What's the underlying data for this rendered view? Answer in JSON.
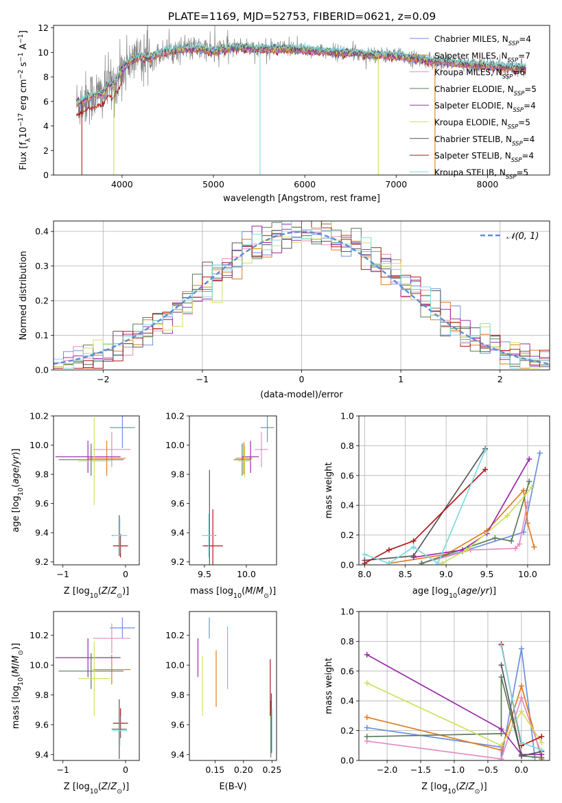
{
  "title": "PLATE=1169, MJD=52753, FIBERID=0621, z=0.09",
  "colors": {
    "chabrier_miles": "#6a8fe0",
    "salpeter_miles": "#e07a1f",
    "kroupa_miles": "#e58bc0",
    "chabrier_elodie": "#5a7a5a",
    "salpeter_elodie": "#9a2aaa",
    "kroupa_elodie": "#cfe05a",
    "chabrier_stelib": "#555555",
    "salpeter_stelib": "#b01818",
    "kroupa_stelib": "#7fd8e0",
    "data": "#808080",
    "normal": "#5b8bd6",
    "grid": "#b0b0b0"
  },
  "chart_data": [
    {
      "id": "spectrum",
      "type": "line",
      "xlabel": "wavelength [Angstrom, rest frame]",
      "ylabel": "Flux [f_λ 10^-17 erg cm^-2 s^-1 A^-1]",
      "xlim": [
        3250,
        8680
      ],
      "ylim": [
        0,
        12.2
      ],
      "xticks": [
        4000,
        5000,
        6000,
        7000,
        8000
      ],
      "yticks": [
        0,
        2,
        4,
        6,
        8,
        10,
        12
      ],
      "grid": false,
      "legend_position": "right",
      "legend": [
        {
          "label": "Chabrier MILES, N_SSP=4",
          "main": "Chabrier MILES, N",
          "sub": "SSP",
          "tail": "=4",
          "color_key": "chabrier_miles"
        },
        {
          "label": "Salpeter MILES, N_SSP=7",
          "main": "Salpeter MILES, N",
          "sub": "SSP",
          "tail": "=7",
          "color_key": "salpeter_miles"
        },
        {
          "label": "Kroupa MILES, N_SSP=6",
          "main": "Kroupa MILES, N",
          "sub": "SSP",
          "tail": "=6",
          "color_key": "kroupa_miles"
        },
        {
          "label": "Chabrier ELODIE, N_SSP=5",
          "main": "Chabrier ELODIE, N",
          "sub": "SSP",
          "tail": "=5",
          "color_key": "chabrier_elodie"
        },
        {
          "label": "Salpeter ELODIE, N_SSP=4",
          "main": "Salpeter ELODIE, N",
          "sub": "SSP",
          "tail": "=4",
          "color_key": "salpeter_elodie"
        },
        {
          "label": "Kroupa ELODIE, N_SSP=5",
          "main": "Kroupa ELODIE, N",
          "sub": "SSP",
          "tail": "=5",
          "color_key": "kroupa_elodie"
        },
        {
          "label": "Chabrier STELIB, N_SSP=4",
          "main": "Chabrier STELIB, N",
          "sub": "SSP",
          "tail": "=4",
          "color_key": "chabrier_stelib"
        },
        {
          "label": "Salpeter STELIB, N_SSP=4",
          "main": "Salpeter STELIB, N",
          "sub": "SSP",
          "tail": "=4",
          "color_key": "salpeter_stelib"
        },
        {
          "label": "Kroupa STELIB, N_SSP=5",
          "main": "Kroupa STELIB, N",
          "sub": "SSP",
          "tail": "=5",
          "color_key": "kroupa_stelib"
        }
      ],
      "model_continuum": [
        [
          3520,
          5.8
        ],
        [
          3600,
          6.2
        ],
        [
          3700,
          6.5
        ],
        [
          3800,
          6.6
        ],
        [
          3850,
          7.4
        ],
        [
          3900,
          7.2
        ],
        [
          3950,
          7.8
        ],
        [
          4000,
          8.6
        ],
        [
          4100,
          9.4
        ],
        [
          4200,
          9.6
        ],
        [
          4300,
          9.5
        ],
        [
          4400,
          9.9
        ],
        [
          4500,
          10.1
        ],
        [
          4700,
          10.3
        ],
        [
          4900,
          10.3
        ],
        [
          5000,
          10.0
        ],
        [
          5100,
          10.3
        ],
        [
          5300,
          10.4
        ],
        [
          5500,
          10.3
        ],
        [
          5800,
          10.3
        ],
        [
          6000,
          10.2
        ],
        [
          6200,
          10.1
        ],
        [
          6400,
          10.0
        ],
        [
          6600,
          9.9
        ],
        [
          6800,
          9.8
        ],
        [
          7000,
          9.7
        ],
        [
          7200,
          9.5
        ],
        [
          7400,
          9.3
        ],
        [
          7600,
          9.2
        ],
        [
          7800,
          9.0
        ],
        [
          8000,
          8.9
        ],
        [
          8200,
          8.8
        ],
        [
          8420,
          8.7
        ]
      ]
    },
    {
      "id": "residuals",
      "type": "line",
      "xlabel": "(data-model)/error",
      "ylabel": "Normed distribution",
      "xlim": [
        -2.5,
        2.5
      ],
      "ylim": [
        0,
        0.43
      ],
      "xticks": [
        -2,
        -1,
        0,
        1,
        2
      ],
      "yticks": [
        0.0,
        0.1,
        0.2,
        0.3,
        0.4
      ],
      "grid": true,
      "legend_position": "top-right",
      "legend": [
        {
          "label": "𝒩(0, 1)",
          "color_key": "normal"
        }
      ],
      "bin_width": 0.1
    },
    {
      "id": "age_vs_Z",
      "type": "scatter",
      "xlabel": "Z [log10(Z/Z⊙)]",
      "ylabel": "age [log10(age/yr)]",
      "xlim": [
        -1.15,
        0.22
      ],
      "ylim": [
        9.18,
        10.2
      ],
      "xticks": [
        -1,
        0
      ],
      "yticks": [
        9.2,
        9.4,
        9.6,
        9.8,
        10.0,
        10.2
      ],
      "points": [
        {
          "color_key": "chabrier_miles",
          "x": -0.05,
          "xerr": 0.2,
          "y": 10.12,
          "yerr": 0.14
        },
        {
          "color_key": "salpeter_miles",
          "x": -0.3,
          "xerr": 0.3,
          "y": 9.91,
          "yerr": 0.12
        },
        {
          "color_key": "kroupa_miles",
          "x": -0.22,
          "xerr": 0.3,
          "y": 9.97,
          "yerr": 0.12
        },
        {
          "color_key": "chabrier_elodie",
          "x": -0.55,
          "xerr": 0.52,
          "y": 9.9,
          "yerr": 0.11
        },
        {
          "color_key": "salpeter_elodie",
          "x": -0.6,
          "xerr": 0.52,
          "y": 9.92,
          "yerr": 0.11
        },
        {
          "color_key": "kroupa_elodie",
          "x": -0.5,
          "xerr": 0.25,
          "y": 9.89,
          "yerr": 0.3
        },
        {
          "color_key": "chabrier_stelib",
          "x": -0.1,
          "xerr": 0.12,
          "y": 9.38,
          "yerr": 0.14
        },
        {
          "color_key": "salpeter_stelib",
          "x": -0.08,
          "xerr": 0.12,
          "y": 9.31,
          "yerr": 0.08
        },
        {
          "color_key": "kroupa_stelib",
          "x": -0.09,
          "xerr": 0.12,
          "y": 9.38,
          "yerr": 0.12
        }
      ]
    },
    {
      "id": "age_vs_mass",
      "type": "scatter",
      "xlabel": "mass [log10(M/M⊙)]",
      "ylabel": "",
      "xlim": [
        9.32,
        10.36
      ],
      "ylim": [
        9.18,
        10.2
      ],
      "xticks": [
        9.5,
        10.0
      ],
      "yticks": [
        9.2,
        9.4,
        9.6,
        9.8,
        10.0,
        10.2
      ],
      "points": [
        {
          "color_key": "chabrier_miles",
          "x": 10.25,
          "xerr": 0.08,
          "y": 10.12,
          "yerr": 0.1
        },
        {
          "color_key": "salpeter_miles",
          "x": 9.97,
          "xerr": 0.1,
          "y": 9.91,
          "yerr": 0.11
        },
        {
          "color_key": "kroupa_miles",
          "x": 10.18,
          "xerr": 0.08,
          "y": 9.97,
          "yerr": 0.12
        },
        {
          "color_key": "chabrier_elodie",
          "x": 9.95,
          "xerr": 0.1,
          "y": 9.9,
          "yerr": 0.11
        },
        {
          "color_key": "salpeter_elodie",
          "x": 10.05,
          "xerr": 0.1,
          "y": 9.92,
          "yerr": 0.11
        },
        {
          "color_key": "kroupa_elodie",
          "x": 9.98,
          "xerr": 0.08,
          "y": 9.89,
          "yerr": 0.11
        },
        {
          "color_key": "chabrier_stelib",
          "x": 9.56,
          "xerr": 0.08,
          "y": 9.38,
          "yerr": 0.45
        },
        {
          "color_key": "salpeter_stelib",
          "x": 9.6,
          "xerr": 0.12,
          "y": 9.31,
          "yerr": 0.25
        },
        {
          "color_key": "kroupa_stelib",
          "x": 9.55,
          "xerr": 0.08,
          "y": 9.38,
          "yerr": 0.15
        }
      ]
    },
    {
      "id": "weight_vs_age",
      "type": "line",
      "xlabel": "age [log10(age/yr)]",
      "ylabel": "mass weight",
      "xlim": [
        7.93,
        10.27
      ],
      "ylim": [
        0,
        1
      ],
      "xticks": [
        8.0,
        8.5,
        9.0,
        9.5,
        10.0
      ],
      "yticks": [
        0.0,
        0.2,
        0.4,
        0.6,
        0.8,
        1.0
      ],
      "grid": true,
      "series": [
        {
          "color_key": "chabrier_miles",
          "points": [
            [
              8.7,
              0.01
            ],
            [
              9.2,
              0.09
            ],
            [
              9.95,
              0.22
            ],
            [
              10.15,
              0.75
            ]
          ]
        },
        {
          "color_key": "salpeter_miles",
          "points": [
            [
              8.3,
              0.01
            ],
            [
              9.0,
              0.07
            ],
            [
              9.5,
              0.23
            ],
            [
              9.95,
              0.5
            ],
            [
              10.0,
              0.28
            ],
            [
              10.08,
              0.12
            ]
          ]
        },
        {
          "color_key": "kroupa_miles",
          "points": [
            [
              8.7,
              0.01
            ],
            [
              9.3,
              0.1
            ],
            [
              9.85,
              0.11
            ],
            [
              9.9,
              0.14
            ],
            [
              10.0,
              0.42
            ]
          ]
        },
        {
          "color_key": "chabrier_elodie",
          "points": [
            [
              8.7,
              0.01
            ],
            [
              9.6,
              0.18
            ],
            [
              9.8,
              0.16
            ],
            [
              10.02,
              0.56
            ]
          ]
        },
        {
          "color_key": "salpeter_elodie",
          "points": [
            [
              8.6,
              0.05
            ],
            [
              9.2,
              0.1
            ],
            [
              9.5,
              0.21
            ],
            [
              10.02,
              0.71
            ]
          ]
        },
        {
          "color_key": "kroupa_elodie",
          "points": [
            [
              8.95,
              0.01
            ],
            [
              9.25,
              0.1
            ],
            [
              9.75,
              0.33
            ],
            [
              10.05,
              0.52
            ]
          ]
        },
        {
          "color_key": "chabrier_stelib",
          "points": [
            [
              8.0,
              0.03
            ],
            [
              8.6,
              0.06
            ],
            [
              9.48,
              0.78
            ]
          ]
        },
        {
          "color_key": "salpeter_stelib",
          "points": [
            [
              8.0,
              0.01
            ],
            [
              8.3,
              0.1
            ],
            [
              8.6,
              0.16
            ],
            [
              9.48,
              0.64
            ]
          ]
        },
        {
          "color_key": "kroupa_stelib",
          "points": [
            [
              8.0,
              0.07
            ],
            [
              8.3,
              0.01
            ],
            [
              8.6,
              0.12
            ],
            [
              8.9,
              0.01
            ],
            [
              9.48,
              0.77
            ]
          ]
        }
      ]
    },
    {
      "id": "mass_vs_Z",
      "type": "scatter",
      "xlabel": "Z [log10(Z/Z⊙)]",
      "ylabel": "mass [log10(M/M⊙)]",
      "xlim": [
        -1.15,
        0.22
      ],
      "ylim": [
        9.36,
        10.36
      ],
      "xticks": [
        -1,
        0
      ],
      "yticks": [
        9.4,
        9.6,
        9.8,
        10.0,
        10.2
      ],
      "points": [
        {
          "color_key": "chabrier_miles",
          "x": -0.05,
          "xerr": 0.2,
          "y": 10.25,
          "yerr": 0.07
        },
        {
          "color_key": "salpeter_miles",
          "x": -0.22,
          "xerr": 0.3,
          "y": 9.97,
          "yerr": 0.1
        },
        {
          "color_key": "kroupa_miles",
          "x": -0.22,
          "xerr": 0.3,
          "y": 10.18,
          "yerr": 0.1
        },
        {
          "color_key": "chabrier_elodie",
          "x": -0.55,
          "xerr": 0.52,
          "y": 9.96,
          "yerr": 0.12
        },
        {
          "color_key": "salpeter_elodie",
          "x": -0.6,
          "xerr": 0.52,
          "y": 10.05,
          "yerr": 0.13
        },
        {
          "color_key": "kroupa_elodie",
          "x": -0.5,
          "xerr": 0.25,
          "y": 9.91,
          "yerr": 0.25
        },
        {
          "color_key": "chabrier_stelib",
          "x": -0.1,
          "xerr": 0.12,
          "y": 9.57,
          "yerr": 0.2
        },
        {
          "color_key": "salpeter_stelib",
          "x": -0.08,
          "xerr": 0.12,
          "y": 9.61,
          "yerr": 0.1
        },
        {
          "color_key": "kroupa_stelib",
          "x": -0.09,
          "xerr": 0.12,
          "y": 9.56,
          "yerr": 0.1
        }
      ]
    },
    {
      "id": "mass_vs_ebv",
      "type": "scatter",
      "xlabel": "E(B-V)",
      "ylabel": "",
      "xlim": [
        0.105,
        0.258
      ],
      "ylim": [
        9.36,
        10.36
      ],
      "xticks": [
        0.15,
        0.2,
        0.25
      ],
      "yticks": [
        9.4,
        9.6,
        9.8,
        10.0,
        10.2
      ],
      "points": [
        {
          "color_key": "chabrier_miles",
          "x": 0.14,
          "y": 10.25,
          "yerr": 0.07
        },
        {
          "color_key": "salpeter_miles",
          "x": 0.152,
          "y": 9.91,
          "yerr": 0.19
        },
        {
          "color_key": "kroupa_miles",
          "x": 0.172,
          "y": 10.05,
          "yerr": 0.21
        },
        {
          "color_key": "chabrier_elodie",
          "x": 0.248,
          "y": 9.57,
          "yerr": 0.19
        },
        {
          "color_key": "salpeter_elodie",
          "x": 0.12,
          "y": 10.05,
          "yerr": 0.13
        },
        {
          "color_key": "kroupa_elodie",
          "x": 0.128,
          "y": 9.86,
          "yerr": 0.2
        },
        {
          "color_key": "chabrier_stelib",
          "x": 0.249,
          "y": 9.61,
          "yerr": 0.2
        },
        {
          "color_key": "salpeter_stelib",
          "x": 0.247,
          "y": 9.85,
          "yerr": 0.19
        },
        {
          "color_key": "kroupa_stelib",
          "x": 0.25,
          "y": 9.56,
          "yerr": 0.15
        }
      ]
    },
    {
      "id": "weight_vs_Z",
      "type": "line",
      "xlabel": "Z [log10(Z/Z⊙)]",
      "ylabel": "mass weight",
      "xlim": [
        -2.42,
        0.42
      ],
      "ylim": [
        0,
        1
      ],
      "xticks": [
        -2.0,
        -1.5,
        -1.0,
        -0.5,
        0.0
      ],
      "yticks": [
        0.0,
        0.2,
        0.4,
        0.6,
        0.8,
        1.0
      ],
      "grid": true,
      "series": [
        {
          "color_key": "chabrier_miles",
          "points": [
            [
              -2.3,
              0.22
            ],
            [
              -0.3,
              0.09
            ],
            [
              -0.3,
              0.01
            ],
            [
              0.0,
              0.75
            ],
            [
              0.2,
              0.02
            ]
          ]
        },
        {
          "color_key": "salpeter_miles",
          "points": [
            [
              -2.3,
              0.29
            ],
            [
              -0.3,
              0.07
            ],
            [
              0.0,
              0.5
            ],
            [
              0.3,
              0.01
            ]
          ]
        },
        {
          "color_key": "kroupa_miles",
          "points": [
            [
              -2.3,
              0.13
            ],
            [
              -0.3,
              0.01
            ],
            [
              0.0,
              0.42
            ],
            [
              0.3,
              0.04
            ]
          ]
        },
        {
          "color_key": "chabrier_elodie",
          "points": [
            [
              -2.3,
              0.16
            ],
            [
              -0.3,
              0.18
            ],
            [
              -0.3,
              0.56
            ],
            [
              0.0,
              0.03
            ],
            [
              0.3,
              0.02
            ]
          ]
        },
        {
          "color_key": "salpeter_elodie",
          "points": [
            [
              -2.3,
              0.71
            ],
            [
              -0.3,
              0.21
            ],
            [
              0.0,
              0.04
            ],
            [
              0.3,
              0.04
            ]
          ]
        },
        {
          "color_key": "kroupa_elodie",
          "points": [
            [
              -2.3,
              0.52
            ],
            [
              -0.3,
              0.1
            ],
            [
              0.0,
              0.33
            ],
            [
              0.3,
              0.12
            ]
          ]
        },
        {
          "color_key": "chabrier_stelib",
          "points": [
            [
              -0.3,
              0.64
            ],
            [
              0.0,
              0.03
            ],
            [
              0.3,
              0.06
            ]
          ]
        },
        {
          "color_key": "salpeter_stelib",
          "points": [
            [
              -0.3,
              0.78
            ],
            [
              0.0,
              0.1
            ],
            [
              0.3,
              0.16
            ]
          ]
        },
        {
          "color_key": "kroupa_stelib",
          "points": [
            [
              -0.3,
              0.77
            ],
            [
              0.0,
              0.12
            ],
            [
              0.3,
              0.07
            ]
          ]
        }
      ]
    }
  ]
}
